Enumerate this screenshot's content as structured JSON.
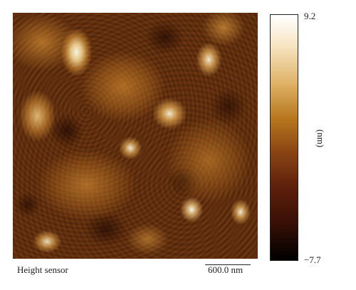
{
  "image": {
    "description_label": "Height sensor",
    "scale_bar_label": "600.0 nm"
  },
  "colorbar": {
    "max_label": "9.2",
    "min_label": "−7.7",
    "unit_label": "(nm)",
    "colors": [
      "#ffffff",
      "#dfb266",
      "#b8781f",
      "#8a4413",
      "#5e200c",
      "#000000"
    ]
  }
}
